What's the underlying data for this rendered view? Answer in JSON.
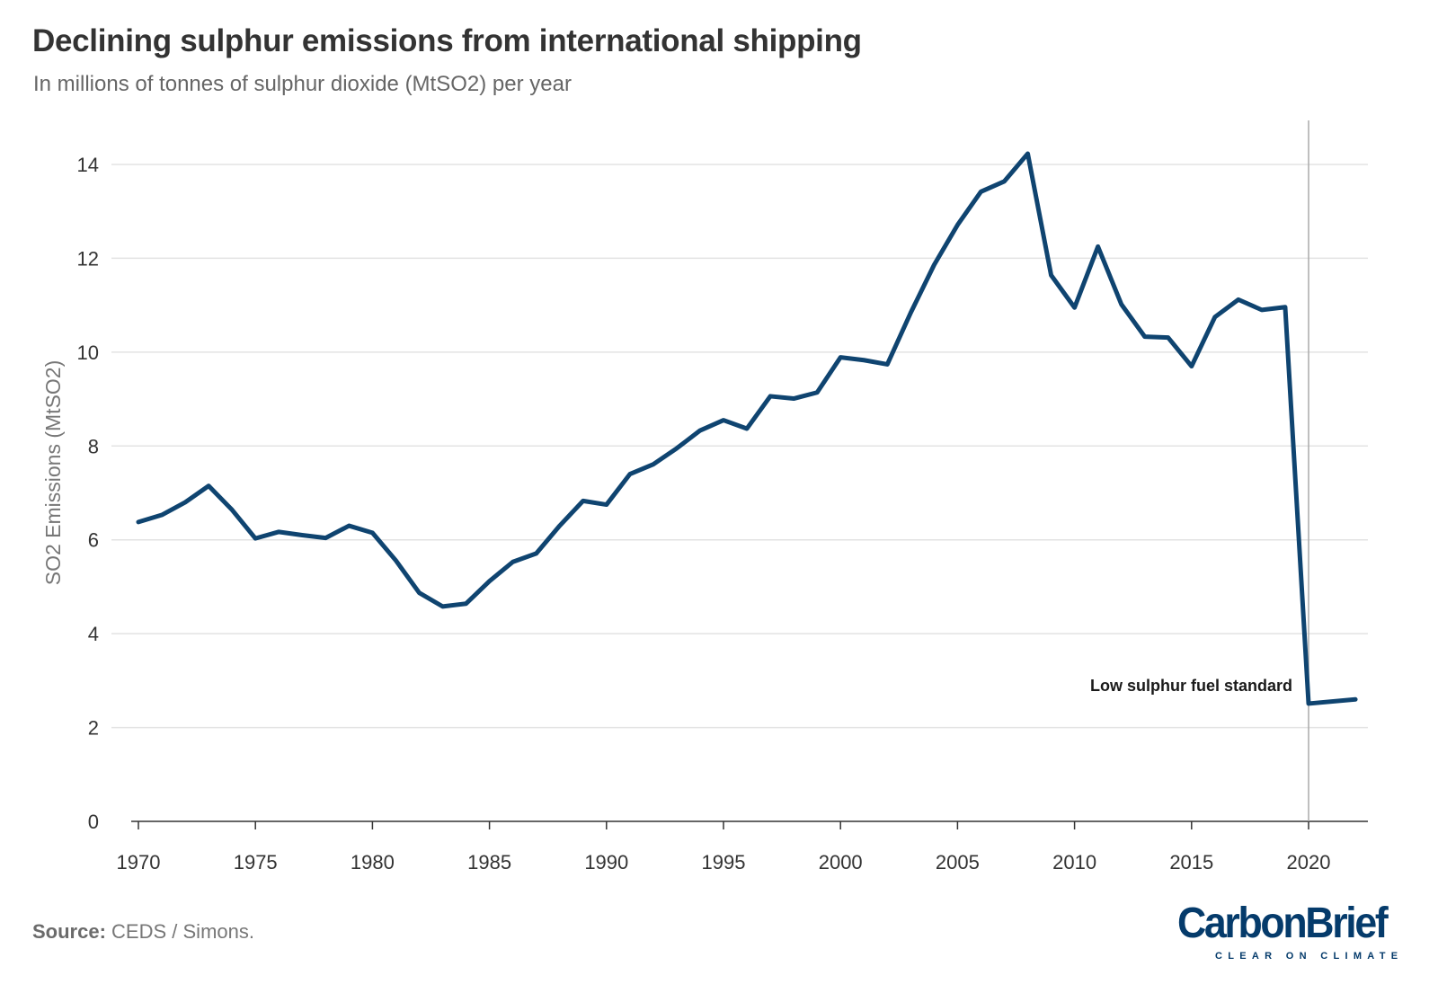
{
  "header": {
    "title": "Declining sulphur emissions from international shipping",
    "subtitle": "In millions of tonnes of sulphur dioxide (MtSO2) per year"
  },
  "footer": {
    "source_label": "Source:",
    "source_text": "CEDS / Simons.",
    "logo_text": "CarbonBrief",
    "logo_tagline": "CLEAR ON CLIMATE"
  },
  "colors": {
    "line": "#0f4470",
    "grid": "#e3e3e3",
    "axis": "#333333",
    "marker_line": "#aaaaaa",
    "logo": "#053b6b"
  },
  "chart_data": {
    "type": "line",
    "title": "Declining sulphur emissions from international shipping",
    "subtitle": "In millions of tonnes of sulphur dioxide (MtSO2) per year",
    "xlabel": "",
    "ylabel": "SO2 Emissions (MtSO2)",
    "xlim": [
      1970,
      2022
    ],
    "ylim": [
      0,
      14.5
    ],
    "xticks": [
      1970,
      1975,
      1980,
      1985,
      1990,
      1995,
      2000,
      2005,
      2010,
      2015,
      2020
    ],
    "yticks": [
      0,
      2,
      4,
      6,
      8,
      10,
      12,
      14
    ],
    "grid": true,
    "series": [
      {
        "x": [
          1970,
          1971,
          1972,
          1973,
          1974,
          1975,
          1976,
          1977,
          1978,
          1979,
          1980,
          1981,
          1982,
          1983,
          1984,
          1985,
          1986,
          1987,
          1988,
          1989,
          1990,
          1991,
          1992,
          1993,
          1994,
          1995,
          1996,
          1997,
          1998,
          1999,
          2000,
          2001,
          2002,
          2003,
          2004,
          2005,
          2006,
          2007,
          2008,
          2009,
          2010,
          2011,
          2012,
          2013,
          2014,
          2015,
          2016,
          2017,
          2018,
          2019,
          2020,
          2022
        ],
        "values": [
          6.38,
          6.53,
          6.8,
          7.15,
          6.64,
          6.03,
          6.17,
          6.1,
          6.04,
          6.3,
          6.15,
          5.56,
          4.87,
          4.58,
          4.64,
          5.12,
          5.53,
          5.71,
          6.3,
          6.83,
          6.75,
          7.4,
          7.61,
          7.95,
          8.33,
          8.55,
          8.37,
          9.06,
          9.01,
          9.14,
          9.89,
          9.83,
          9.74,
          10.84,
          11.86,
          12.71,
          13.42,
          13.64,
          14.23,
          11.64,
          10.95,
          12.25,
          11.02,
          10.33,
          10.31,
          9.7,
          10.75,
          11.12,
          10.9,
          10.96,
          2.51,
          2.6
        ]
      }
    ],
    "annotations": [
      {
        "x": 2020,
        "text": "Low sulphur fuel standard"
      }
    ]
  }
}
